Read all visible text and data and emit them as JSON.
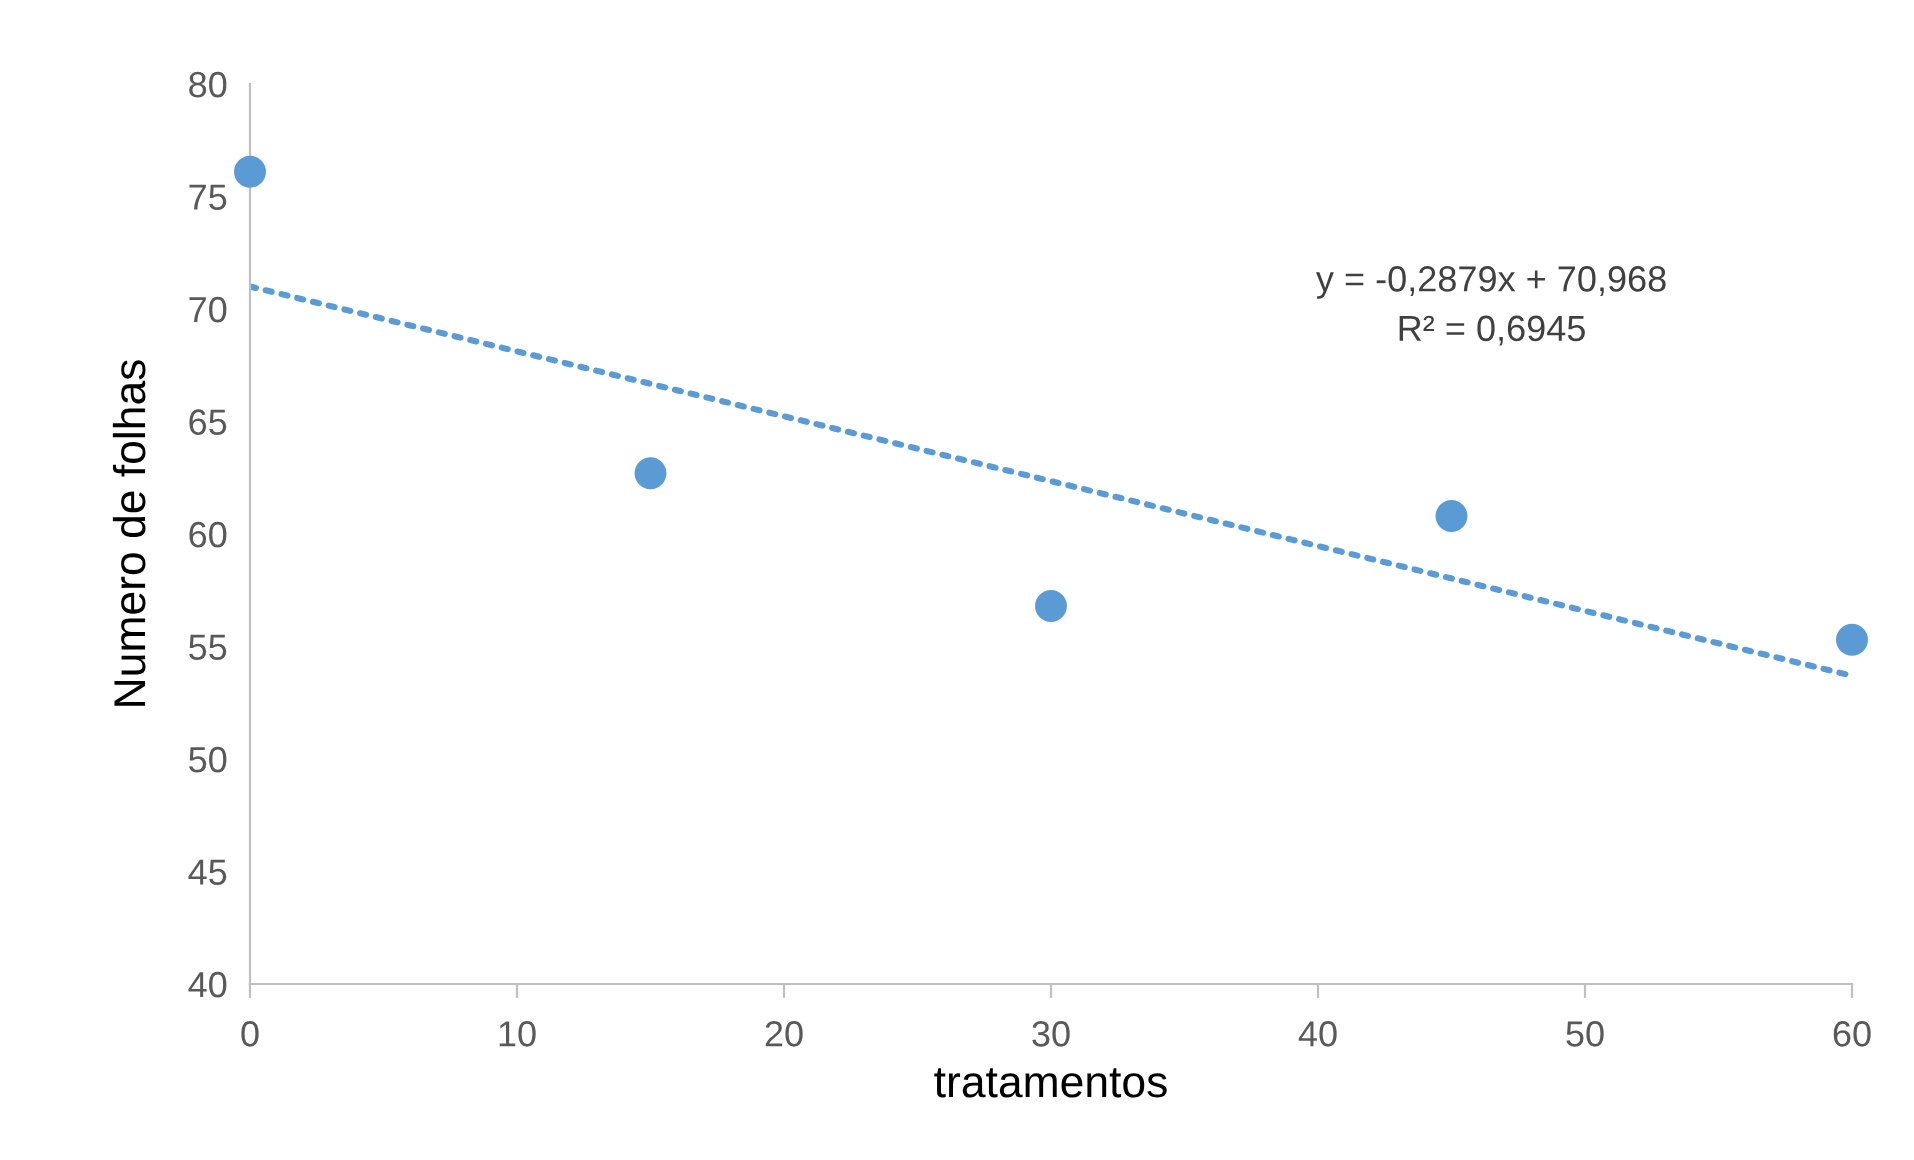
{
  "chart_data": {
    "type": "scatter",
    "xlabel": "tratamentos",
    "ylabel": "Numero de folhas",
    "xlim": [
      0,
      60
    ],
    "xticks": [
      0,
      10,
      20,
      30,
      40,
      50,
      60
    ],
    "ylim": [
      40,
      80
    ],
    "yticks": [
      40,
      45,
      50,
      55,
      60,
      65,
      70,
      75,
      80
    ],
    "grid": false,
    "series": [
      {
        "color": "#5b9bd5",
        "marker": "circle",
        "x": [
          0,
          15,
          30,
          45,
          60
        ],
        "values": [
          76.1,
          62.7,
          56.8,
          60.8,
          55.3
        ]
      },
      {
        "type": "line",
        "color": "#5b9bd5",
        "line_style": "dotted",
        "x": [
          0,
          60
        ],
        "values": [
          71.0,
          53.7
        ]
      }
    ],
    "annotations": [
      "y = -0,2879x + 70,968",
      "R² = 0,6945"
    ]
  }
}
